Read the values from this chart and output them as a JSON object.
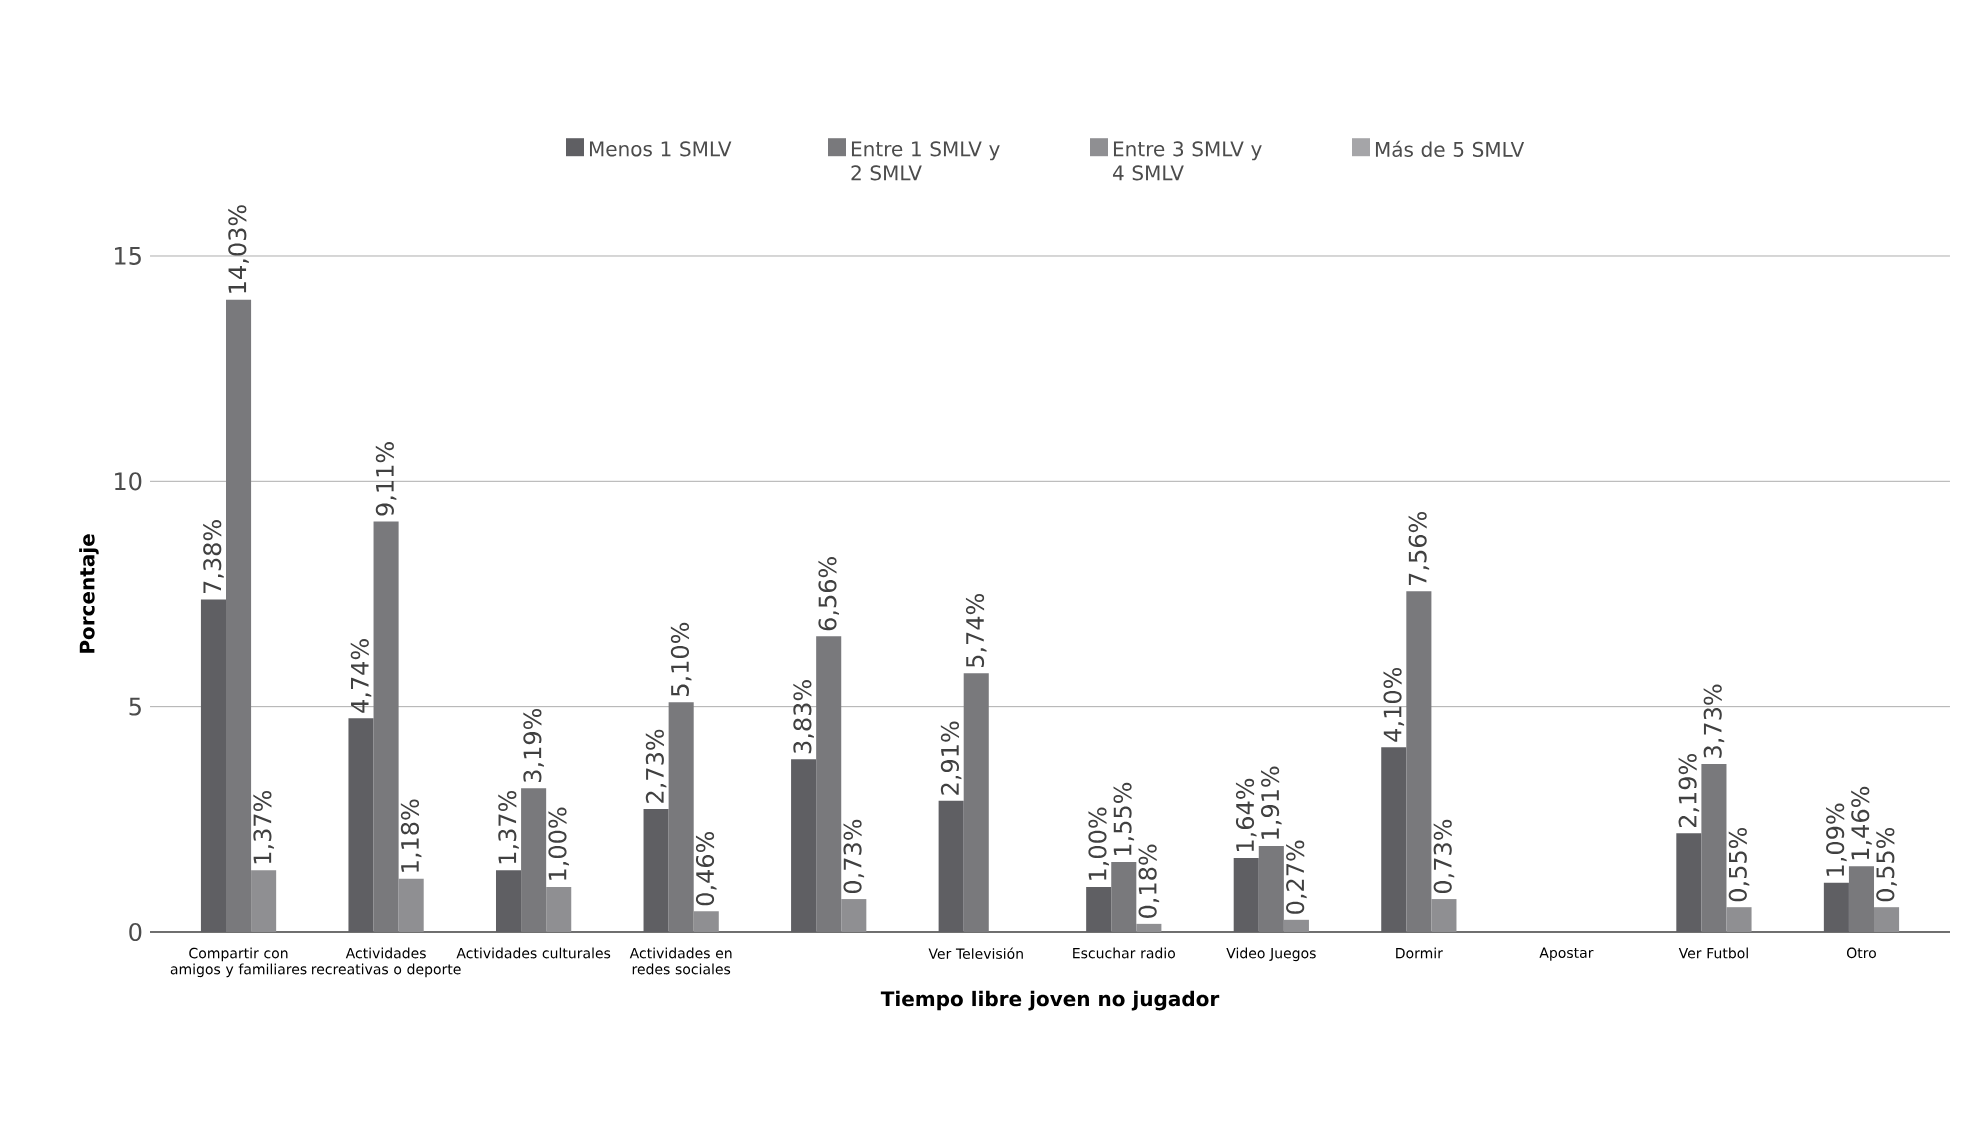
{
  "chart_data": {
    "type": "bar",
    "xlabel": "Tiempo libre joven no jugador",
    "ylabel": "Porcentaje",
    "categories": [
      "Compartir con amigos y familiares",
      "Actividades recreativas o deporte",
      "Actividades culturales",
      "Actividades en redes sociales",
      null,
      "Ver Televisión",
      "Escuchar radio",
      "Video Juegos",
      "Dormir",
      "Apostar",
      "Ver Futbol",
      "Otro"
    ],
    "series": [
      {
        "name": "Menos 1 SMLV",
        "color": "#5f5f63",
        "values": [
          7.38,
          4.74,
          1.37,
          2.73,
          3.83,
          2.91,
          1.0,
          1.64,
          4.1,
          null,
          2.19,
          1.09
        ],
        "value_labels": [
          "7,38%",
          "4,74%",
          "1,37%",
          "2,73%",
          "3,83%",
          "2,91%",
          "1,00%",
          "1,64%",
          "4,10%",
          null,
          "2,19%",
          "1,09%"
        ]
      },
      {
        "name": "Entre 1 SMLV y 2 SMLV",
        "color": "#79797c",
        "values": [
          14.03,
          9.11,
          3.19,
          5.1,
          6.56,
          5.74,
          1.55,
          1.91,
          7.56,
          null,
          3.73,
          1.46
        ],
        "value_labels": [
          "14,03%",
          "9,11%",
          "3,19%",
          "5,10%",
          "6,56%",
          "5,74%",
          "1,55%",
          "1,91%",
          "7,56%",
          null,
          "3,73%",
          "1,46%"
        ]
      },
      {
        "name": "Entre 3 SMLV y 4 SMLV",
        "color": "#8f8f92",
        "values": [
          1.37,
          1.18,
          1.0,
          0.46,
          0.73,
          null,
          0.18,
          0.27,
          0.73,
          null,
          0.55,
          0.55
        ],
        "value_labels": [
          "1,37%",
          "1,18%",
          "1,00%",
          "0,46%",
          "0,73%",
          null,
          "0,18%",
          "0,27%",
          "0,73%",
          null,
          "0,55%",
          "0,55%"
        ]
      },
      {
        "name": "Más de 5 SMLV",
        "color": "#a5a5a8",
        "values": [
          null,
          null,
          null,
          null,
          null,
          null,
          null,
          null,
          null,
          null,
          null,
          null
        ]
      }
    ],
    "ylim": [
      0,
      15
    ],
    "yticks": [
      0,
      5,
      10,
      15
    ],
    "grid": "y",
    "legend": "top"
  }
}
